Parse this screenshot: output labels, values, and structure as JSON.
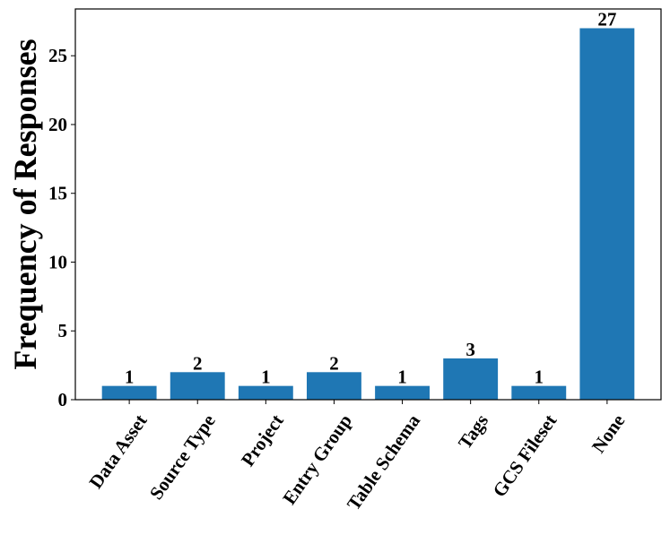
{
  "chart_data": {
    "type": "bar",
    "ylabel": "Frequency of Responses",
    "categories": [
      "Data Asset",
      "Source Type",
      "Project",
      "Entry Group",
      "Table Schema",
      "Tags",
      "GCS Fileset",
      "None"
    ],
    "values": [
      1,
      2,
      1,
      2,
      1,
      3,
      1,
      27
    ],
    "color": "#1f77b4",
    "ylim": [
      0,
      28.4
    ],
    "yticks": [
      0,
      5,
      10,
      15,
      20,
      25
    ]
  }
}
